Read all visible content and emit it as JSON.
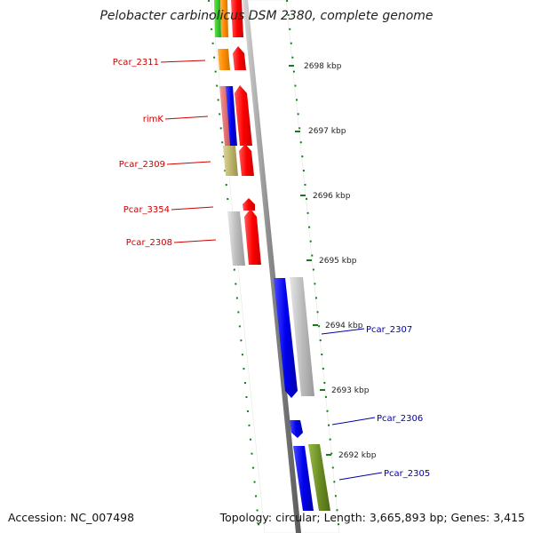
{
  "title": "Pelobacter carbinolicus DSM 2380, complete genome",
  "accession": "Accession: NC_007498",
  "topology": "Topology: circular; Length: 3,665,893 bp; Genes: 3,415",
  "ticks": [
    {
      "label": "2698 kbp"
    },
    {
      "label": "2697 kbp"
    },
    {
      "label": "2696 kbp"
    },
    {
      "label": "2695 kbp"
    },
    {
      "label": "2694 kbp"
    },
    {
      "label": "2693 kbp"
    },
    {
      "label": "2692 kbp"
    }
  ],
  "genes_left": [
    {
      "label": "Pcar_2311"
    },
    {
      "label": "rimK"
    },
    {
      "label": "Pcar_2309"
    },
    {
      "label": "Pcar_3354"
    },
    {
      "label": "Pcar_2308"
    }
  ],
  "genes_right": [
    {
      "label": "Pcar_2307"
    },
    {
      "label": "Pcar_2306"
    },
    {
      "label": "Pcar_2305"
    }
  ],
  "colors": {
    "forward": "#ff0000",
    "reverse": "#0000ee",
    "left_label": "#cc0000",
    "right_label": "#0000aa",
    "tick": "#1a7a1a",
    "backbone": "#8c8c8c"
  }
}
